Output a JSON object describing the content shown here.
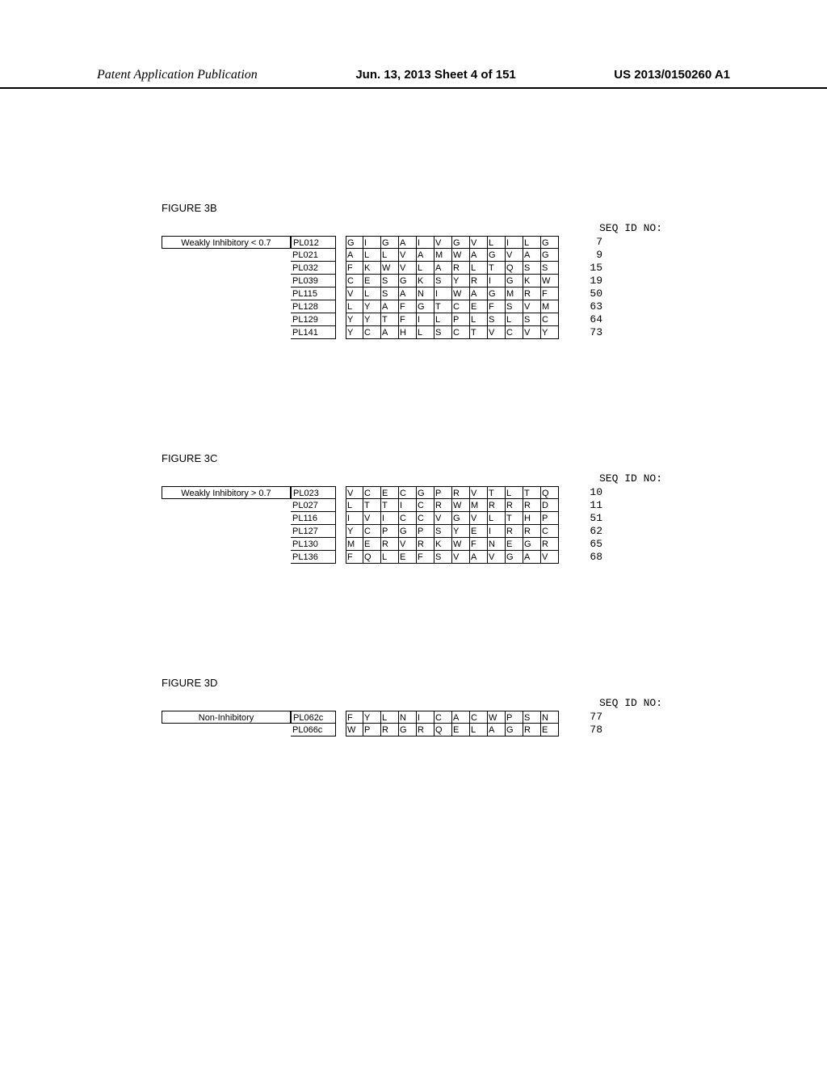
{
  "header": {
    "left": "Patent Application Publication",
    "center": "Jun. 13, 2013  Sheet 4 of 151",
    "right": "US 2013/0150260 A1"
  },
  "seq_label": "SEQ ID NO:",
  "figures": [
    {
      "title": "FIGURE 3B",
      "category": "Weakly Inhibitory < 0.7",
      "rows": [
        {
          "id": "PL012",
          "seq": [
            "G",
            "I",
            "G",
            "A",
            "I",
            "V",
            "G",
            "V",
            "L",
            "I",
            "L",
            "G"
          ],
          "no": "7"
        },
        {
          "id": "PL021",
          "seq": [
            "A",
            "L",
            "L",
            "V",
            "A",
            "M",
            "W",
            "A",
            "G",
            "V",
            "A",
            "G"
          ],
          "no": "9"
        },
        {
          "id": "PL032",
          "seq": [
            "F",
            "K",
            "W",
            "V",
            "L",
            "A",
            "R",
            "L",
            "T",
            "Q",
            "S",
            "S"
          ],
          "no": "15"
        },
        {
          "id": "PL039",
          "seq": [
            "C",
            "E",
            "S",
            "G",
            "K",
            "S",
            "Y",
            "R",
            "I",
            "G",
            "K",
            "W"
          ],
          "no": "19"
        },
        {
          "id": "PL115",
          "seq": [
            "V",
            "L",
            "S",
            "A",
            "N",
            "I",
            "W",
            "A",
            "G",
            "M",
            "R",
            "F"
          ],
          "no": "50"
        },
        {
          "id": "PL128",
          "seq": [
            "L",
            "Y",
            "A",
            "F",
            "G",
            "T",
            "C",
            "E",
            "F",
            "S",
            "V",
            "M"
          ],
          "no": "63"
        },
        {
          "id": "PL129",
          "seq": [
            "Y",
            "Y",
            "T",
            "F",
            "I",
            "L",
            "P",
            "L",
            "S",
            "L",
            "S",
            "C"
          ],
          "no": "64"
        },
        {
          "id": "PL141",
          "seq": [
            "Y",
            "C",
            "A",
            "H",
            "L",
            "S",
            "C",
            "T",
            "V",
            "C",
            "V",
            "Y"
          ],
          "no": "73"
        }
      ]
    },
    {
      "title": "FIGURE 3C",
      "category": "Weakly Inhibitory > 0.7",
      "rows": [
        {
          "id": "PL023",
          "seq": [
            "V",
            "C",
            "E",
            "C",
            "G",
            "P",
            "R",
            "V",
            "T",
            "L",
            "T",
            "Q"
          ],
          "no": "10"
        },
        {
          "id": "PL027",
          "seq": [
            "L",
            "T",
            "T",
            "I",
            "C",
            "R",
            "W",
            "M",
            "R",
            "R",
            "R",
            "D"
          ],
          "no": "11"
        },
        {
          "id": "PL116",
          "seq": [
            "I",
            "V",
            "I",
            "C",
            "C",
            "V",
            "G",
            "V",
            "L",
            "T",
            "H",
            "P"
          ],
          "no": "51"
        },
        {
          "id": "PL127",
          "seq": [
            "Y",
            "C",
            "P",
            "G",
            "P",
            "S",
            "Y",
            "E",
            "I",
            "R",
            "R",
            "C"
          ],
          "no": "62"
        },
        {
          "id": "PL130",
          "seq": [
            "M",
            "E",
            "R",
            "V",
            "R",
            "K",
            "W",
            "F",
            "N",
            "E",
            "G",
            "R"
          ],
          "no": "65"
        },
        {
          "id": "PL136",
          "seq": [
            "F",
            "Q",
            "L",
            "E",
            "F",
            "S",
            "V",
            "A",
            "V",
            "G",
            "A",
            "V"
          ],
          "no": "68"
        }
      ]
    },
    {
      "title": "FIGURE 3D",
      "category": "Non-Inhibitory",
      "rows": [
        {
          "id": "PL062c",
          "seq": [
            "F",
            "Y",
            "L",
            "N",
            "I",
            "C",
            "A",
            "C",
            "W",
            "P",
            "S",
            "N"
          ],
          "no": "77"
        },
        {
          "id": "PL066c",
          "seq": [
            "W",
            "P",
            "R",
            "G",
            "R",
            "Q",
            "E",
            "L",
            "A",
            "G",
            "R",
            "E"
          ],
          "no": "78"
        }
      ]
    }
  ]
}
